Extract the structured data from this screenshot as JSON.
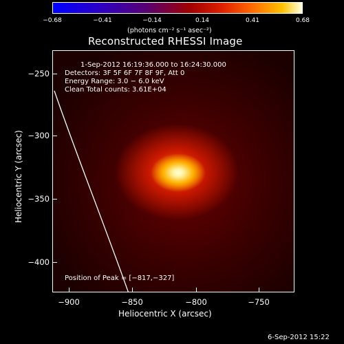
{
  "colorbar": {
    "ticks": [
      "−0.68",
      "−0.41",
      "−0.14",
      "0.14",
      "0.41",
      "0.68"
    ],
    "units": "(photons cm⁻² s⁻¹ asec⁻²)"
  },
  "title": "Reconstructed RHESSI Image",
  "info": {
    "time_range": "1-Sep-2012 16:19:36.000 to 16:24:30.000",
    "detectors": "Detectors: 3F 5F 6F 7F 8F 9F, Att 0",
    "energy": "Energy Range: 3.0 − 6.0 keV",
    "clean": "Clean    Total counts: 3.61E+04",
    "peak": "Position of Peak = [−817,−327]"
  },
  "axes": {
    "y_label": "Heliocentric Y (arcsec)",
    "x_label": "Heliocentric X (arcsec)",
    "y_ticks": [
      "−250",
      "−300",
      "−350",
      "−400"
    ],
    "x_ticks": [
      "−900",
      "−850",
      "−800",
      "−750"
    ]
  },
  "footer": "6-Sep-2012 15:22"
}
